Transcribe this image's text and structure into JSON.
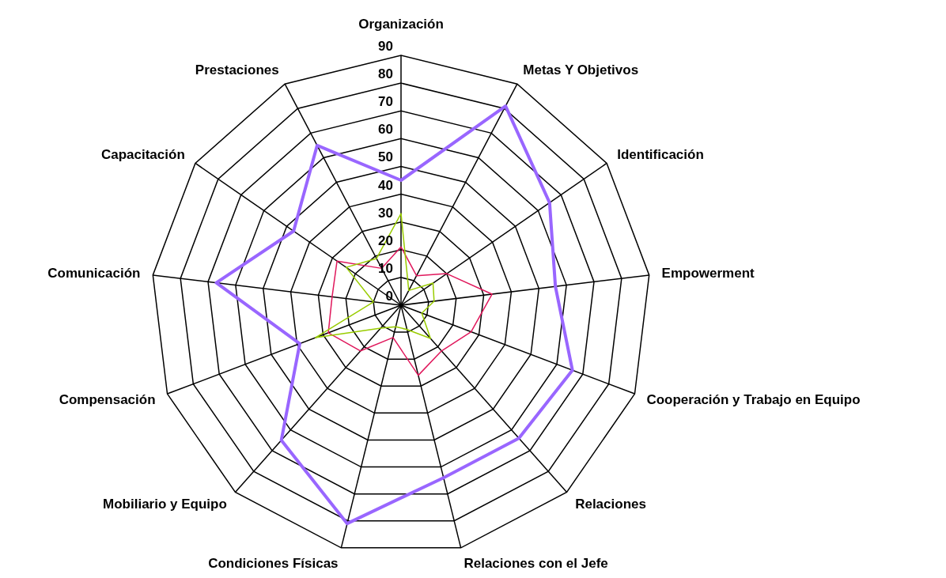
{
  "chart_data": {
    "type": "radar",
    "categories": [
      "Organización",
      "Metas Y Objetivos",
      "Identificación",
      "Empowerment",
      "Cooperación y Trabajo en Equipo",
      "Relaciones",
      "Relaciones con el Jefe",
      "Condiciones Físicas",
      "Mobiliario y Equipo",
      "Compensación",
      "Comunicación",
      "Capacitación",
      "Prestaciones"
    ],
    "series": [
      {
        "color": "#9966ff",
        "values": [
          45,
          81,
          65,
          56,
          66,
          64,
          64,
          81,
          65,
          39,
          67,
          47,
          65
        ]
      },
      {
        "color": "#e0185c",
        "values": [
          21,
          12,
          20,
          33,
          27,
          22,
          26,
          12,
          22,
          28,
          25,
          28,
          15
        ]
      },
      {
        "color": "#99cc00",
        "values": [
          33,
          6,
          14,
          12,
          8,
          16,
          9,
          8,
          11,
          33,
          10,
          24,
          19
        ]
      }
    ],
    "ylim": [
      0,
      90
    ],
    "yticks": [
      0,
      10,
      20,
      30,
      40,
      50,
      60,
      70,
      80,
      90
    ],
    "grid": true,
    "legend": false
  }
}
